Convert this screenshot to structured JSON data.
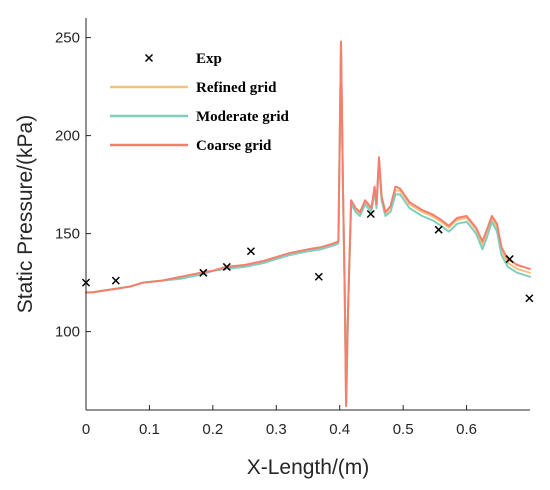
{
  "chart_data": {
    "type": "line",
    "xlabel": "X-Length/(m)",
    "ylabel": "Static  Pressure/(kPa)",
    "xlim": [
      0,
      0.7
    ],
    "ylim": [
      60,
      260
    ],
    "xticks": [
      0,
      0.1,
      0.2,
      0.3,
      0.4,
      0.5,
      0.6
    ],
    "xtick_labels": [
      "0",
      "0.1",
      "0.2",
      "0.3",
      "0.4",
      "0.5",
      "0.6"
    ],
    "yticks": [
      100,
      150,
      200,
      250
    ],
    "ytick_labels": [
      "100",
      "150",
      "200",
      "250"
    ],
    "grid": false,
    "legend_position": "top-left",
    "series": [
      {
        "name": "Exp",
        "kind": "scatter",
        "marker": "x",
        "color": "#000000",
        "points": [
          [
            0.0,
            125
          ],
          [
            0.047,
            126
          ],
          [
            0.185,
            130
          ],
          [
            0.222,
            133
          ],
          [
            0.26,
            141
          ],
          [
            0.367,
            128
          ],
          [
            0.449,
            160
          ],
          [
            0.556,
            152
          ],
          [
            0.668,
            137
          ],
          [
            0.699,
            117
          ]
        ]
      },
      {
        "name": "Refined grid",
        "kind": "line",
        "color": "#f5c27a",
        "points": [
          [
            0.0,
            120
          ],
          [
            0.01,
            120
          ],
          [
            0.03,
            121
          ],
          [
            0.05,
            122
          ],
          [
            0.07,
            123
          ],
          [
            0.09,
            125
          ],
          [
            0.12,
            126
          ],
          [
            0.15,
            128
          ],
          [
            0.18,
            129
          ],
          [
            0.2,
            131
          ],
          [
            0.22,
            132
          ],
          [
            0.25,
            134
          ],
          [
            0.28,
            136
          ],
          [
            0.3,
            137
          ],
          [
            0.32,
            139
          ],
          [
            0.35,
            141
          ],
          [
            0.37,
            142
          ],
          [
            0.39,
            144
          ],
          [
            0.398,
            146
          ],
          [
            0.402,
            247
          ],
          [
            0.405,
            175
          ],
          [
            0.408,
            118
          ],
          [
            0.41,
            63
          ],
          [
            0.413,
            110
          ],
          [
            0.418,
            166
          ],
          [
            0.425,
            162
          ],
          [
            0.432,
            160
          ],
          [
            0.44,
            166
          ],
          [
            0.45,
            162
          ],
          [
            0.455,
            173
          ],
          [
            0.458,
            164
          ],
          [
            0.462,
            188
          ],
          [
            0.466,
            168
          ],
          [
            0.472,
            160
          ],
          [
            0.48,
            163
          ],
          [
            0.488,
            172
          ],
          [
            0.495,
            172
          ],
          [
            0.51,
            165
          ],
          [
            0.53,
            161
          ],
          [
            0.545,
            159
          ],
          [
            0.56,
            156
          ],
          [
            0.572,
            153
          ],
          [
            0.585,
            157
          ],
          [
            0.6,
            158
          ],
          [
            0.615,
            152
          ],
          [
            0.625,
            144
          ],
          [
            0.632,
            150
          ],
          [
            0.64,
            158
          ],
          [
            0.648,
            153
          ],
          [
            0.655,
            141
          ],
          [
            0.665,
            135
          ],
          [
            0.68,
            132
          ],
          [
            0.7,
            130
          ]
        ]
      },
      {
        "name": "Moderate grid",
        "kind": "line",
        "color": "#7ecfc0",
        "points": [
          [
            0.0,
            120
          ],
          [
            0.01,
            120
          ],
          [
            0.03,
            121
          ],
          [
            0.05,
            122
          ],
          [
            0.07,
            123
          ],
          [
            0.09,
            125
          ],
          [
            0.12,
            126
          ],
          [
            0.15,
            127
          ],
          [
            0.18,
            129
          ],
          [
            0.2,
            131
          ],
          [
            0.22,
            132
          ],
          [
            0.25,
            133
          ],
          [
            0.28,
            135
          ],
          [
            0.3,
            137
          ],
          [
            0.32,
            139
          ],
          [
            0.35,
            141
          ],
          [
            0.37,
            142
          ],
          [
            0.39,
            144
          ],
          [
            0.398,
            145
          ],
          [
            0.402,
            247
          ],
          [
            0.405,
            175
          ],
          [
            0.408,
            118
          ],
          [
            0.41,
            63
          ],
          [
            0.413,
            110
          ],
          [
            0.418,
            165
          ],
          [
            0.425,
            161
          ],
          [
            0.432,
            159
          ],
          [
            0.44,
            165
          ],
          [
            0.45,
            161
          ],
          [
            0.455,
            172
          ],
          [
            0.458,
            163
          ],
          [
            0.462,
            187
          ],
          [
            0.466,
            167
          ],
          [
            0.472,
            159
          ],
          [
            0.48,
            161
          ],
          [
            0.488,
            170
          ],
          [
            0.495,
            170
          ],
          [
            0.51,
            163
          ],
          [
            0.53,
            159
          ],
          [
            0.545,
            157
          ],
          [
            0.56,
            154
          ],
          [
            0.572,
            151
          ],
          [
            0.585,
            155
          ],
          [
            0.6,
            156
          ],
          [
            0.615,
            150
          ],
          [
            0.625,
            142
          ],
          [
            0.632,
            148
          ],
          [
            0.64,
            156
          ],
          [
            0.648,
            151
          ],
          [
            0.655,
            139
          ],
          [
            0.665,
            133
          ],
          [
            0.68,
            130
          ],
          [
            0.7,
            128
          ]
        ]
      },
      {
        "name": "Coarse grid",
        "kind": "line",
        "color": "#f47f6e",
        "points": [
          [
            0.0,
            120
          ],
          [
            0.01,
            120
          ],
          [
            0.03,
            121
          ],
          [
            0.05,
            122
          ],
          [
            0.07,
            123
          ],
          [
            0.09,
            125
          ],
          [
            0.12,
            126
          ],
          [
            0.15,
            128
          ],
          [
            0.18,
            130
          ],
          [
            0.2,
            131
          ],
          [
            0.22,
            133
          ],
          [
            0.25,
            134
          ],
          [
            0.28,
            136
          ],
          [
            0.3,
            138
          ],
          [
            0.32,
            140
          ],
          [
            0.35,
            142
          ],
          [
            0.37,
            143
          ],
          [
            0.39,
            145
          ],
          [
            0.398,
            146
          ],
          [
            0.402,
            248
          ],
          [
            0.405,
            176
          ],
          [
            0.408,
            118
          ],
          [
            0.41,
            62
          ],
          [
            0.413,
            110
          ],
          [
            0.418,
            167
          ],
          [
            0.425,
            163
          ],
          [
            0.432,
            161
          ],
          [
            0.44,
            167
          ],
          [
            0.45,
            163
          ],
          [
            0.455,
            174
          ],
          [
            0.458,
            165
          ],
          [
            0.462,
            189
          ],
          [
            0.466,
            169
          ],
          [
            0.472,
            161
          ],
          [
            0.48,
            164
          ],
          [
            0.488,
            174
          ],
          [
            0.495,
            173
          ],
          [
            0.51,
            166
          ],
          [
            0.53,
            162
          ],
          [
            0.545,
            160
          ],
          [
            0.56,
            157
          ],
          [
            0.572,
            154
          ],
          [
            0.585,
            158
          ],
          [
            0.6,
            159
          ],
          [
            0.615,
            153
          ],
          [
            0.625,
            146
          ],
          [
            0.632,
            152
          ],
          [
            0.64,
            159
          ],
          [
            0.648,
            155
          ],
          [
            0.655,
            143
          ],
          [
            0.665,
            137
          ],
          [
            0.68,
            134
          ],
          [
            0.7,
            132
          ]
        ]
      }
    ]
  }
}
